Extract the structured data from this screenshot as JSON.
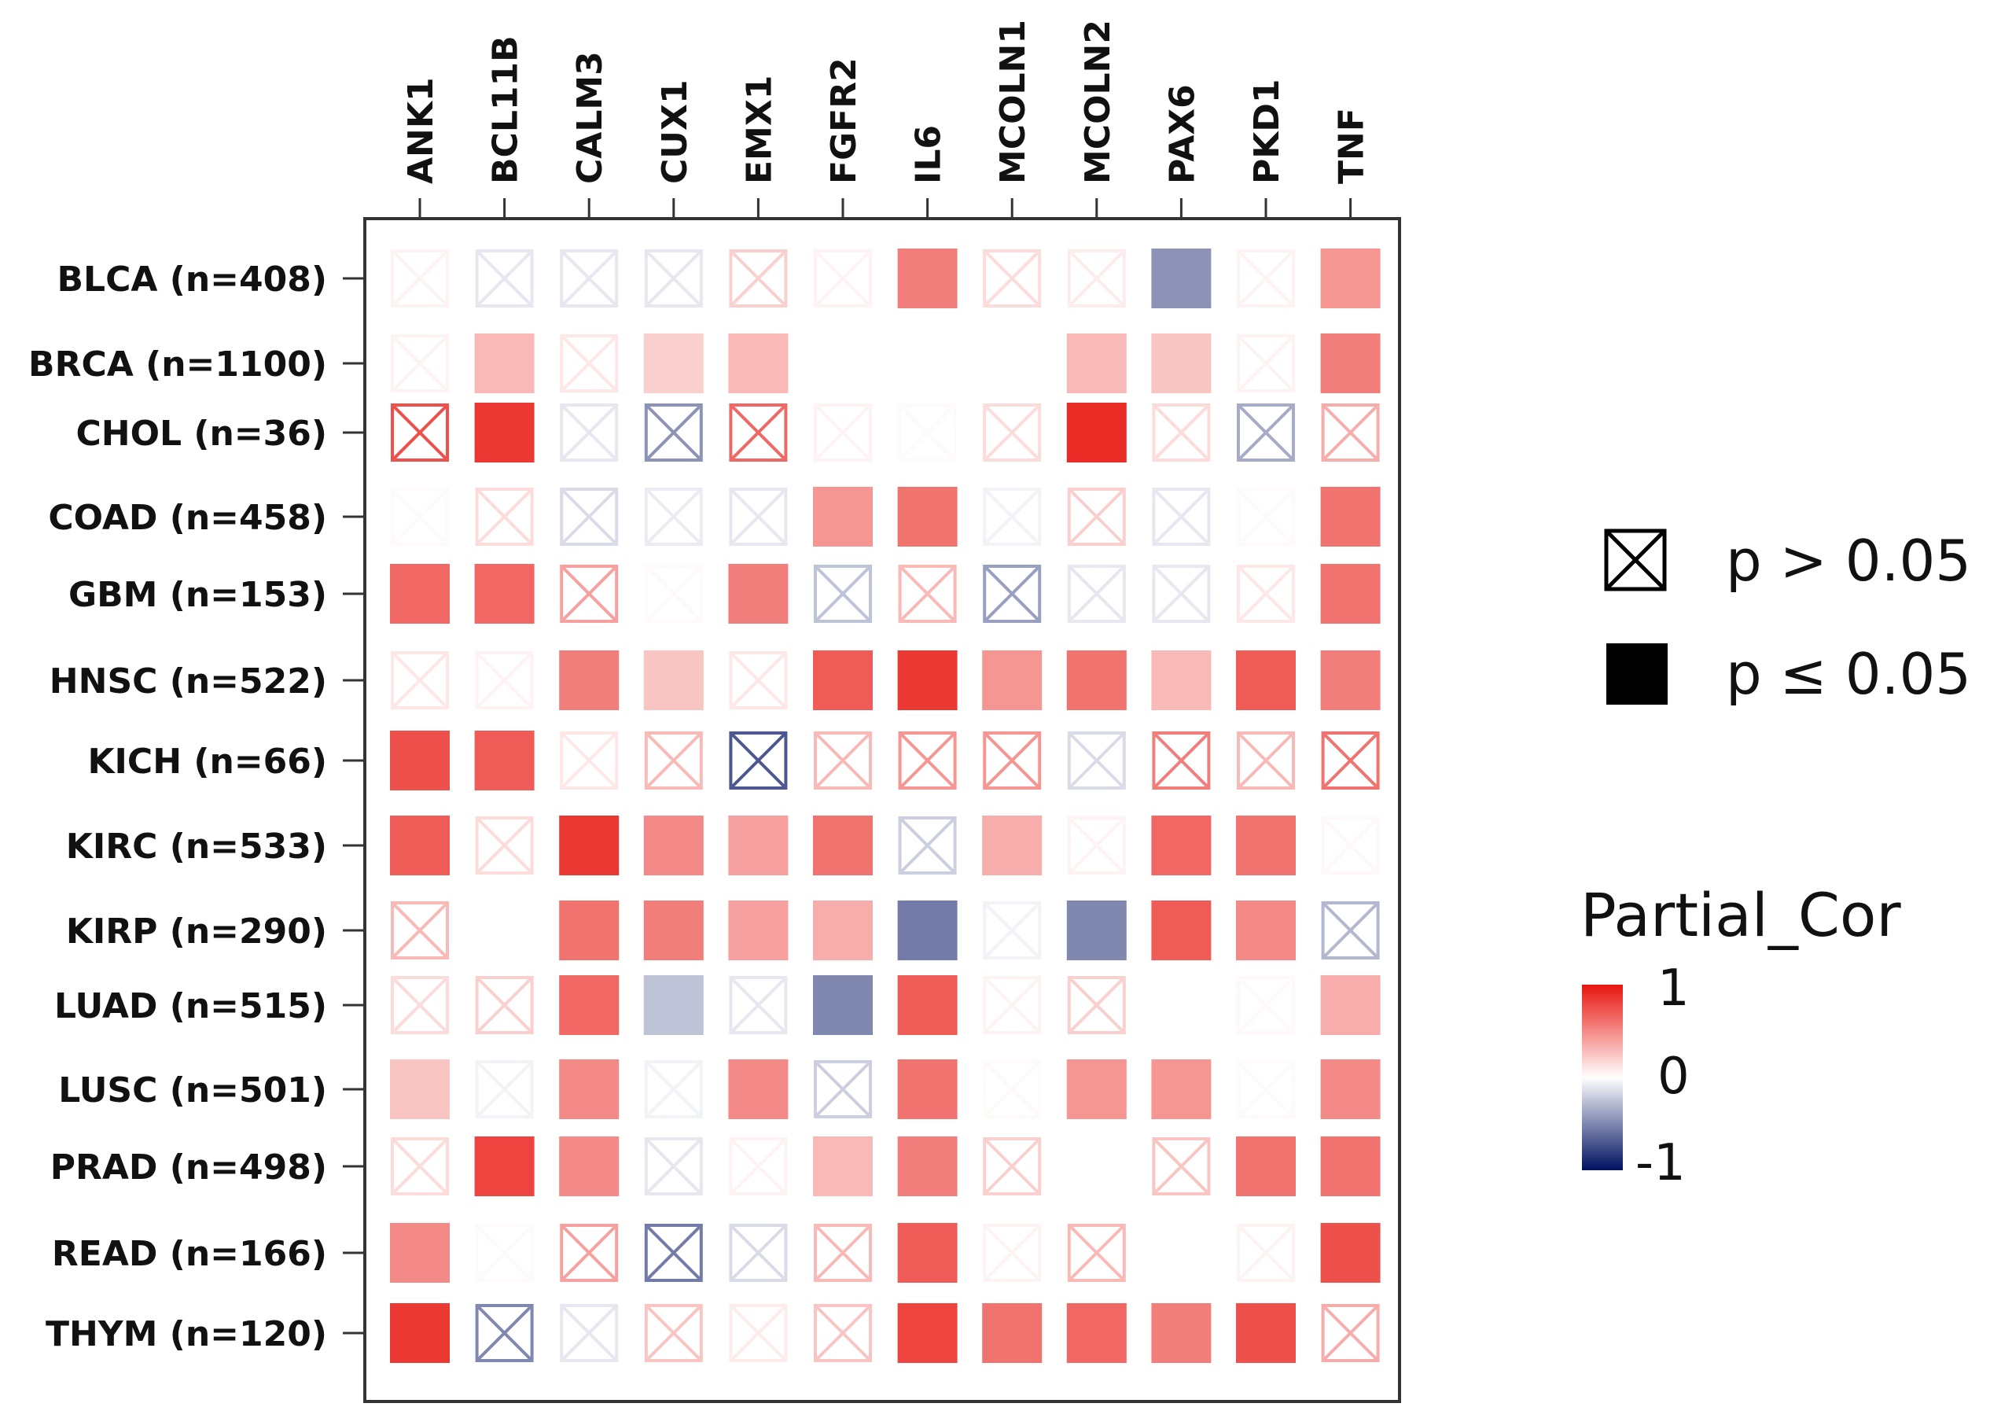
{
  "chart_data": {
    "type": "heatmap",
    "title": "",
    "columns": [
      "ANK1",
      "BCL11B",
      "CALM3",
      "CUX1",
      "EMX1",
      "FGFR2",
      "IL6",
      "MCOLN1",
      "MCOLN2",
      "PAX6",
      "PKD1",
      "TNF"
    ],
    "rows": [
      "BLCA (n=408)",
      "BRCA (n=1100)",
      "CHOL (n=36)",
      "COAD (n=458)",
      "GBM (n=153)",
      "HNSC (n=522)",
      "KICH (n=66)",
      "KIRC (n=533)",
      "KIRP (n=290)",
      "LUAD (n=515)",
      "LUSC (n=501)",
      "PRAD (n=498)",
      "READ (n=166)",
      "THYM (n=120)"
    ],
    "values": [
      [
        0.05,
        -0.1,
        -0.1,
        -0.1,
        0.2,
        0.05,
        0.55,
        0.15,
        0.08,
        -0.45,
        0.05,
        0.45
      ],
      [
        0.05,
        0.3,
        0.1,
        0.2,
        0.3,
        0.0,
        0.0,
        0.0,
        0.3,
        0.25,
        0.05,
        0.55
      ],
      [
        0.75,
        0.85,
        -0.1,
        -0.45,
        0.65,
        0.05,
        0.02,
        0.15,
        0.9,
        0.15,
        -0.35,
        0.35
      ],
      [
        0.02,
        0.15,
        -0.15,
        -0.08,
        -0.1,
        0.45,
        0.6,
        -0.05,
        0.2,
        -0.1,
        0.02,
        0.6
      ],
      [
        0.65,
        0.65,
        0.4,
        0.02,
        0.55,
        -0.25,
        0.3,
        -0.4,
        -0.1,
        -0.1,
        0.1,
        0.6
      ],
      [
        0.1,
        0.05,
        0.55,
        0.25,
        0.1,
        0.7,
        0.85,
        0.45,
        0.6,
        0.3,
        0.7,
        0.55
      ],
      [
        0.75,
        0.7,
        0.1,
        0.3,
        -0.7,
        0.3,
        0.45,
        0.45,
        -0.15,
        0.55,
        0.3,
        0.6
      ],
      [
        0.7,
        0.15,
        0.85,
        0.5,
        0.4,
        0.6,
        -0.2,
        0.35,
        0.05,
        0.65,
        0.6,
        0.03
      ],
      [
        0.3,
        0.0,
        0.6,
        0.55,
        0.4,
        0.35,
        -0.55,
        -0.05,
        -0.5,
        0.7,
        0.5,
        -0.3
      ],
      [
        0.15,
        0.2,
        0.65,
        -0.25,
        -0.1,
        -0.5,
        0.7,
        0.05,
        0.2,
        0.0,
        0.03,
        0.35
      ],
      [
        0.25,
        -0.05,
        0.5,
        -0.05,
        0.5,
        -0.2,
        0.6,
        0.02,
        0.45,
        0.45,
        0.02,
        0.5
      ],
      [
        0.15,
        0.8,
        0.5,
        -0.1,
        0.05,
        0.3,
        0.55,
        0.2,
        0.0,
        0.25,
        0.6,
        0.6
      ],
      [
        0.5,
        0.02,
        0.4,
        -0.55,
        -0.15,
        0.3,
        0.7,
        0.05,
        0.3,
        0.0,
        0.05,
        0.75
      ],
      [
        0.85,
        -0.5,
        -0.1,
        0.25,
        0.08,
        0.25,
        0.8,
        0.6,
        0.65,
        0.55,
        0.75,
        0.35
      ]
    ],
    "significant": [
      [
        false,
        false,
        false,
        false,
        false,
        false,
        true,
        false,
        false,
        true,
        false,
        true
      ],
      [
        false,
        true,
        false,
        true,
        true,
        false,
        false,
        false,
        true,
        true,
        false,
        true
      ],
      [
        false,
        true,
        false,
        false,
        false,
        false,
        false,
        false,
        true,
        false,
        false,
        false
      ],
      [
        false,
        false,
        false,
        false,
        false,
        true,
        true,
        false,
        false,
        false,
        false,
        true
      ],
      [
        true,
        true,
        false,
        false,
        true,
        false,
        false,
        false,
        false,
        false,
        false,
        true
      ],
      [
        false,
        false,
        true,
        true,
        false,
        true,
        true,
        true,
        true,
        true,
        true,
        true
      ],
      [
        true,
        true,
        false,
        false,
        false,
        false,
        false,
        false,
        false,
        false,
        false,
        false
      ],
      [
        true,
        false,
        true,
        true,
        true,
        true,
        false,
        true,
        false,
        true,
        true,
        false
      ],
      [
        false,
        true,
        true,
        true,
        true,
        true,
        true,
        false,
        true,
        true,
        true,
        false
      ],
      [
        false,
        false,
        true,
        true,
        false,
        true,
        true,
        false,
        false,
        true,
        false,
        true
      ],
      [
        true,
        false,
        true,
        false,
        true,
        false,
        true,
        false,
        true,
        true,
        false,
        true
      ],
      [
        false,
        true,
        true,
        false,
        false,
        true,
        true,
        false,
        true,
        false,
        true,
        true
      ],
      [
        true,
        false,
        false,
        false,
        false,
        false,
        true,
        false,
        false,
        true,
        false,
        true
      ],
      [
        true,
        false,
        false,
        false,
        false,
        false,
        true,
        true,
        true,
        true,
        true,
        false
      ]
    ],
    "legend": {
      "ns_label": "p > 0.05",
      "sig_label": "p ≤ 0.05",
      "scale_title": "Partial_Cor",
      "scale_max": "1",
      "scale_mid": "0",
      "scale_min": "-1"
    },
    "value_range": [
      -1,
      1
    ],
    "colors": {
      "high": "#e8150f",
      "mid": "#ffffff",
      "low": "#001060"
    }
  }
}
